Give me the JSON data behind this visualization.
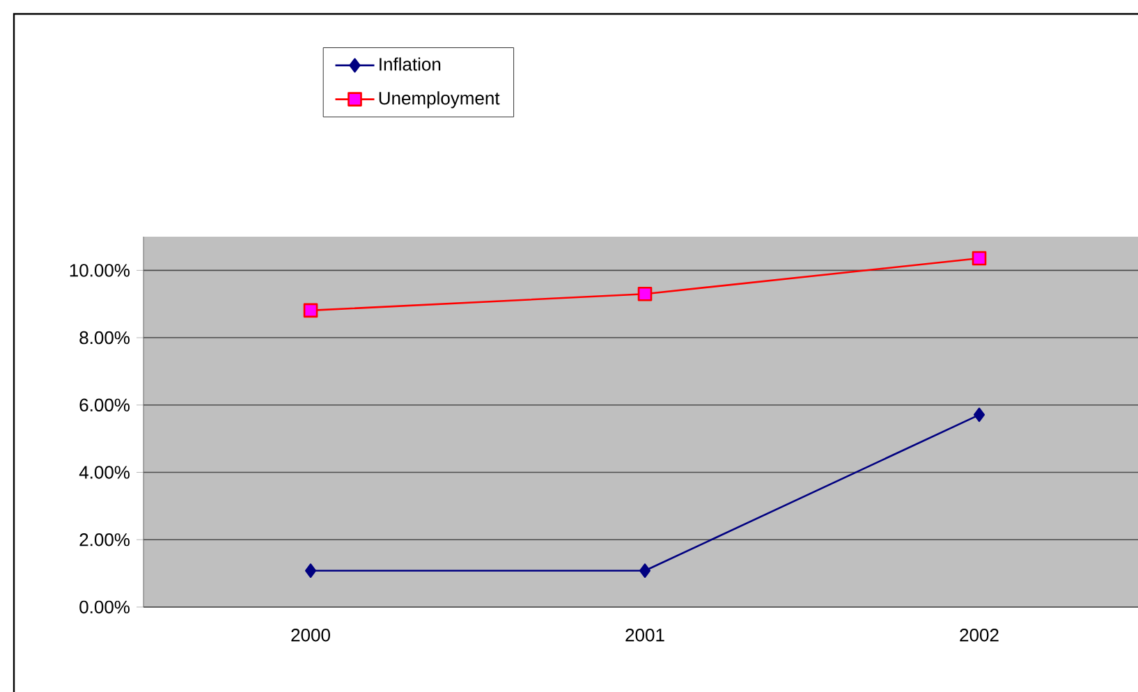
{
  "chart_data": {
    "type": "line",
    "categories": [
      "2000",
      "2001",
      "2002"
    ],
    "series": [
      {
        "name": "Inflation",
        "color": "#000080",
        "marker": "diamond",
        "values": [
          1.08,
          1.08,
          5.71
        ]
      },
      {
        "name": "Unemployment",
        "color": "#ff0000",
        "marker": "square",
        "values": [
          8.81,
          9.3,
          10.36
        ]
      }
    ],
    "ylim": [
      0,
      11
    ],
    "yticks": [
      {
        "value": 0,
        "label": "0.00%"
      },
      {
        "value": 2,
        "label": "2.00%"
      },
      {
        "value": 4,
        "label": "4.00%"
      },
      {
        "value": 6,
        "label": "6.00%"
      },
      {
        "value": 8,
        "label": "8.00%"
      },
      {
        "value": 10,
        "label": "10.00%"
      }
    ],
    "grid": "y",
    "legend": "top",
    "line_style": "solid"
  }
}
